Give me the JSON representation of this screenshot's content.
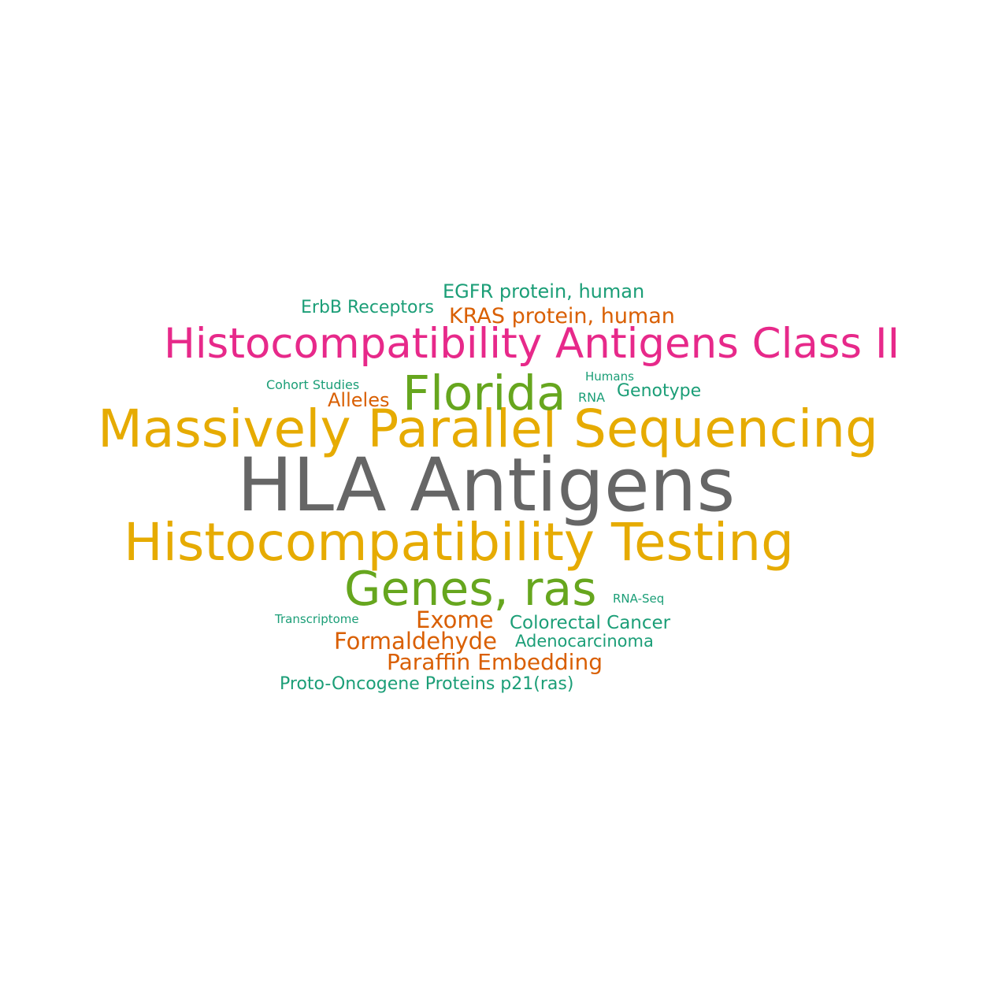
{
  "word_cloud": {
    "words": [
      {
        "text": "HLA Antigens",
        "color": "#666666"
      },
      {
        "text": "Massively Parallel Sequencing",
        "color": "#e6ab02"
      },
      {
        "text": "Histocompatibility Testing",
        "color": "#e6ab02"
      },
      {
        "text": "Histocompatibility Antigens Class II",
        "color": "#e7298a"
      },
      {
        "text": "Florida",
        "color": "#66a61e"
      },
      {
        "text": "Genes, ras",
        "color": "#66a61e"
      },
      {
        "text": "KRAS protein, human",
        "color": "#d95f02"
      },
      {
        "text": "EGFR protein, human",
        "color": "#1b9e77"
      },
      {
        "text": "ErbB Receptors",
        "color": "#1b9e77"
      },
      {
        "text": "Alleles",
        "color": "#d95f02"
      },
      {
        "text": "Cohort Studies",
        "color": "#1b9e77"
      },
      {
        "text": "Humans",
        "color": "#1b9e77"
      },
      {
        "text": "RNA",
        "color": "#1b9e77"
      },
      {
        "text": "Genotype",
        "color": "#1b9e77"
      },
      {
        "text": "RNA-Seq",
        "color": "#1b9e77"
      },
      {
        "text": "Transcriptome",
        "color": "#1b9e77"
      },
      {
        "text": "Exome",
        "color": "#d95f02"
      },
      {
        "text": "Colorectal Cancer",
        "color": "#1b9e77"
      },
      {
        "text": "Formaldehyde",
        "color": "#d95f02"
      },
      {
        "text": "Adenocarcinoma",
        "color": "#1b9e77"
      },
      {
        "text": "Paraffin Embedding",
        "color": "#d95f02"
      },
      {
        "text": "Proto-Oncogene Proteins p21(ras)",
        "color": "#1b9e77"
      }
    ]
  }
}
